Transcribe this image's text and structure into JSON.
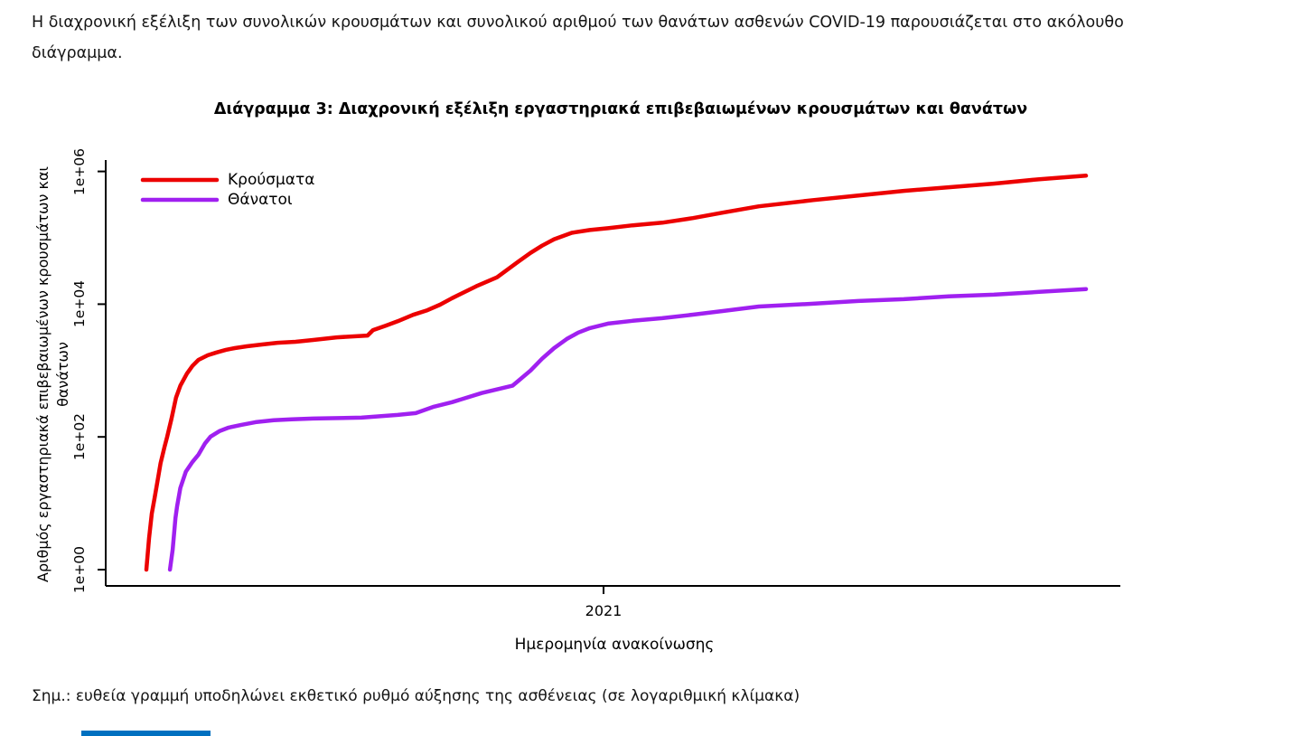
{
  "page": {
    "intro_text": "Η διαχρονική εξέλιξη των συνολικών κρουσμάτων και συνολικού αριθμού των θανάτων ασθενών COVID-19 παρουσιάζεται στο ακόλουθο διάγραμμα.",
    "note_text": "Σημ.: ευθεία γραμμή υποδηλώνει εκθετικό ρυθμό αύξησης της ασθένειας (σε λογαριθμική κλίμακα)"
  },
  "chart_data": {
    "type": "line",
    "title": "Διάγραμμα 3: Διαχρονική εξέλιξη εργαστηριακά επιβεβαιωμένων κρουσμάτων και θανάτων",
    "xlabel": "Ημερομηνία ανακοίνωσης",
    "ylabel": "Αριθμός εργαστηριακά επιβεβαιωμένων κρουσμάτων και θανάτων",
    "y_scale": "log10",
    "x_unit": "decimal_year_of_announcement_date",
    "x_range": [
      2020.09,
      2021.94
    ],
    "y_range": [
      1,
      1000000
    ],
    "grid": false,
    "y_ticks": [
      {
        "label": "1e+00",
        "value": 1
      },
      {
        "label": "1e+02",
        "value": 100
      },
      {
        "label": "1e+04",
        "value": 10000
      },
      {
        "label": "1e+06",
        "value": 1000000
      }
    ],
    "x_ticks": [
      {
        "label": "2021",
        "value": 2021.0
      }
    ],
    "legend": {
      "position": "top-left",
      "entries": [
        {
          "label": "Κρούσματα",
          "color": "#EC0000"
        },
        {
          "label": "Θάνατοι",
          "color": "#A020F0"
        }
      ]
    },
    "series": [
      {
        "name": "Κρούσματα",
        "color": "#EC0000",
        "points": [
          [
            2020.167,
            1
          ],
          [
            2020.172,
            3
          ],
          [
            2020.177,
            7
          ],
          [
            2020.182,
            12
          ],
          [
            2020.188,
            23
          ],
          [
            2020.193,
            40
          ],
          [
            2020.2,
            70
          ],
          [
            2020.205,
            100
          ],
          [
            2020.213,
            190
          ],
          [
            2020.221,
            390
          ],
          [
            2020.229,
            590
          ],
          [
            2020.241,
            900
          ],
          [
            2020.251,
            1175
          ],
          [
            2020.262,
            1450
          ],
          [
            2020.279,
            1700
          ],
          [
            2020.295,
            1870
          ],
          [
            2020.312,
            2050
          ],
          [
            2020.328,
            2180
          ],
          [
            2020.35,
            2320
          ],
          [
            2020.378,
            2470
          ],
          [
            2020.406,
            2620
          ],
          [
            2020.439,
            2710
          ],
          [
            2020.471,
            2890
          ],
          [
            2020.514,
            3160
          ],
          [
            2020.57,
            3370
          ],
          [
            2020.58,
            4070
          ],
          [
            2020.603,
            4740
          ],
          [
            2020.625,
            5530
          ],
          [
            2020.653,
            6900
          ],
          [
            2020.679,
            8100
          ],
          [
            2020.702,
            9800
          ],
          [
            2020.724,
            12300
          ],
          [
            2020.768,
            18600
          ],
          [
            2020.806,
            25400
          ],
          [
            2020.844,
            43300
          ],
          [
            2020.867,
            59300
          ],
          [
            2020.888,
            76200
          ],
          [
            2020.91,
            95200
          ],
          [
            2020.942,
            119000
          ],
          [
            2020.975,
            131000
          ],
          [
            2021.008,
            139600
          ],
          [
            2021.053,
            154000
          ],
          [
            2021.107,
            169000
          ],
          [
            2021.163,
            198000
          ],
          [
            2021.217,
            239000
          ],
          [
            2021.283,
            298000
          ],
          [
            2021.382,
            370000
          ],
          [
            2021.464,
            434000
          ],
          [
            2021.547,
            509000
          ],
          [
            2021.629,
            577000
          ],
          [
            2021.711,
            654000
          ],
          [
            2021.794,
            764000
          ],
          [
            2021.879,
            863000
          ]
        ]
      },
      {
        "name": "Θάνατοι",
        "color": "#A020F0",
        "points": [
          [
            2020.21,
            1
          ],
          [
            2020.215,
            2
          ],
          [
            2020.22,
            6
          ],
          [
            2020.223,
            9
          ],
          [
            2020.229,
            17
          ],
          [
            2020.239,
            30
          ],
          [
            2020.251,
            42
          ],
          [
            2020.262,
            54
          ],
          [
            2020.274,
            80
          ],
          [
            2020.284,
            101
          ],
          [
            2020.3,
            122
          ],
          [
            2020.317,
            138
          ],
          [
            2020.34,
            152
          ],
          [
            2020.366,
            167
          ],
          [
            2020.399,
            178
          ],
          [
            2020.432,
            184
          ],
          [
            2020.471,
            189
          ],
          [
            2020.559,
            195
          ],
          [
            2020.625,
            214
          ],
          [
            2020.658,
            228
          ],
          [
            2020.691,
            285
          ],
          [
            2020.724,
            334
          ],
          [
            2020.778,
            458
          ],
          [
            2020.834,
            590
          ],
          [
            2020.844,
            690
          ],
          [
            2020.867,
            1000
          ],
          [
            2020.888,
            1510
          ],
          [
            2020.91,
            2180
          ],
          [
            2020.933,
            2990
          ],
          [
            2020.954,
            3740
          ],
          [
            2020.975,
            4360
          ],
          [
            2021.008,
            5100
          ],
          [
            2021.053,
            5620
          ],
          [
            2021.107,
            6150
          ],
          [
            2021.163,
            6960
          ],
          [
            2021.217,
            7880
          ],
          [
            2021.283,
            9230
          ],
          [
            2021.382,
            10150
          ],
          [
            2021.464,
            11150
          ],
          [
            2021.547,
            11900
          ],
          [
            2021.629,
            13100
          ],
          [
            2021.711,
            13900
          ],
          [
            2021.794,
            15300
          ],
          [
            2021.879,
            16900
          ]
        ]
      }
    ]
  },
  "footer": {
    "accent_bar_color": "#0070C0"
  }
}
